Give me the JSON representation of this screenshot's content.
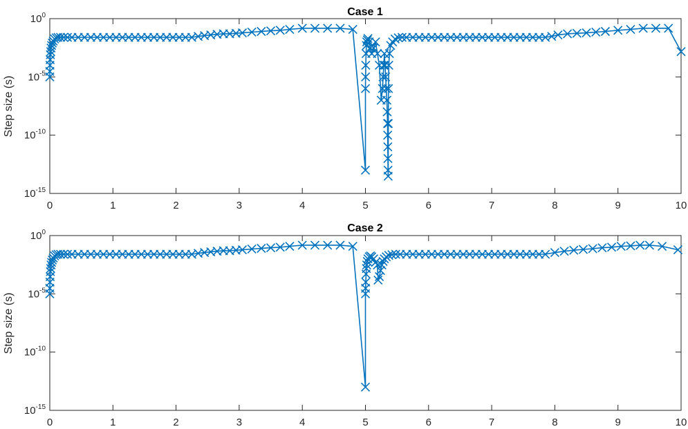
{
  "chart_data": [
    {
      "type": "line",
      "title": "Case 1",
      "xlabel": "",
      "ylabel": "Step size (s)",
      "xlim": [
        0,
        10
      ],
      "ylim": [
        1e-15,
        1
      ],
      "yscale": "log",
      "x_ticks": [
        "0",
        "1",
        "2",
        "3",
        "4",
        "5",
        "6",
        "7",
        "8",
        "9",
        "10"
      ],
      "y_ticks": [
        {
          "base": "10",
          "exp": "0"
        },
        {
          "base": "10",
          "exp": "-5"
        },
        {
          "base": "10",
          "exp": "-10"
        },
        {
          "base": "10",
          "exp": "-15"
        }
      ],
      "color": "#0072BD",
      "marker": "x",
      "grid": false,
      "series": [
        {
          "x": [
            0,
            0.001,
            0.003,
            0.006,
            0.01,
            0.015,
            0.02,
            0.028,
            0.04,
            0.055,
            0.075,
            0.1,
            0.13,
            0.17,
            0.22,
            0.28,
            0.35,
            0.45,
            0.55,
            0.65,
            0.75,
            0.85,
            0.95,
            1.05,
            1.15,
            1.25,
            1.35,
            1.45,
            1.55,
            1.65,
            1.75,
            1.85,
            1.95,
            2.05,
            2.15,
            2.25,
            2.35,
            2.45,
            2.55,
            2.65,
            2.75,
            2.85,
            2.95,
            3.05,
            3.2,
            3.35,
            3.5,
            3.65,
            3.8,
            4.0,
            4.2,
            4.4,
            4.6,
            4.8,
            5.0,
            5.0005,
            5.002,
            5.005,
            5.01,
            5.015,
            5.02,
            5.03,
            5.04,
            5.06,
            5.08,
            5.1,
            5.13,
            5.16,
            5.19,
            5.22,
            5.25,
            5.27,
            5.28,
            5.29,
            5.3,
            5.31,
            5.32,
            5.33,
            5.34,
            5.345,
            5.35,
            5.352,
            5.354,
            5.356,
            5.358,
            5.36,
            5.362,
            5.365,
            5.37,
            5.38,
            5.4,
            5.43,
            5.47,
            5.52,
            5.58,
            5.65,
            5.75,
            5.85,
            5.95,
            6.05,
            6.15,
            6.25,
            6.35,
            6.45,
            6.55,
            6.65,
            6.75,
            6.85,
            6.95,
            7.05,
            7.15,
            7.25,
            7.35,
            7.45,
            7.55,
            7.65,
            7.75,
            7.85,
            7.95,
            8.05,
            8.2,
            8.35,
            8.5,
            8.65,
            8.8,
            9.0,
            9.2,
            9.4,
            9.6,
            9.8,
            10.0
          ],
          "y": [
            1e-05,
            3e-05,
            0.0001,
            0.0003,
            0.0008,
            0.0015,
            0.003,
            0.005,
            0.008,
            0.012,
            0.018,
            0.023,
            0.025,
            0.025,
            0.025,
            0.025,
            0.025,
            0.025,
            0.025,
            0.025,
            0.025,
            0.025,
            0.025,
            0.025,
            0.025,
            0.025,
            0.025,
            0.025,
            0.025,
            0.025,
            0.025,
            0.025,
            0.025,
            0.025,
            0.025,
            0.025,
            0.03,
            0.035,
            0.04,
            0.045,
            0.05,
            0.05,
            0.055,
            0.06,
            0.07,
            0.08,
            0.09,
            0.1,
            0.12,
            0.15,
            0.15,
            0.15,
            0.15,
            0.12,
            1e-13,
            1e-06,
            1e-05,
            0.0001,
            0.001,
            0.005,
            0.01,
            0.015,
            0.02,
            0.01,
            0.003,
            0.001,
            0.003,
            0.01,
            0.001,
            0.0001,
            1e-07,
            1e-06,
            1e-05,
            0.0001,
            0.001,
            0.0001,
            1e-05,
            1e-06,
            1e-07,
            1e-08,
            1e-09,
            1e-10,
            1e-11,
            1e-12,
            1e-13,
            3e-14,
            1e-09,
            1e-06,
            0.0001,
            0.001,
            0.005,
            0.01,
            0.018,
            0.023,
            0.025,
            0.025,
            0.025,
            0.025,
            0.025,
            0.025,
            0.025,
            0.025,
            0.025,
            0.025,
            0.025,
            0.025,
            0.025,
            0.025,
            0.025,
            0.025,
            0.025,
            0.025,
            0.025,
            0.025,
            0.025,
            0.025,
            0.025,
            0.025,
            0.03,
            0.04,
            0.05,
            0.055,
            0.06,
            0.07,
            0.08,
            0.1,
            0.12,
            0.15,
            0.15,
            0.15,
            0.0015
          ]
        }
      ]
    },
    {
      "type": "line",
      "title": "Case 2",
      "xlabel": "",
      "ylabel": "Step size (s)",
      "xlim": [
        0,
        10
      ],
      "ylim": [
        1e-15,
        1
      ],
      "yscale": "log",
      "x_ticks": [
        "0",
        "1",
        "2",
        "3",
        "4",
        "5",
        "6",
        "7",
        "8",
        "9",
        "10"
      ],
      "y_ticks": [
        {
          "base": "10",
          "exp": "0"
        },
        {
          "base": "10",
          "exp": "-5"
        },
        {
          "base": "10",
          "exp": "-10"
        },
        {
          "base": "10",
          "exp": "-15"
        }
      ],
      "color": "#0072BD",
      "marker": "x",
      "grid": false,
      "series": [
        {
          "x": [
            0,
            0.001,
            0.003,
            0.006,
            0.01,
            0.015,
            0.02,
            0.028,
            0.04,
            0.055,
            0.075,
            0.1,
            0.13,
            0.17,
            0.22,
            0.28,
            0.35,
            0.45,
            0.55,
            0.65,
            0.75,
            0.85,
            0.95,
            1.05,
            1.15,
            1.25,
            1.35,
            1.45,
            1.55,
            1.65,
            1.75,
            1.85,
            1.95,
            2.05,
            2.15,
            2.25,
            2.35,
            2.45,
            2.55,
            2.65,
            2.75,
            2.85,
            2.95,
            3.05,
            3.2,
            3.35,
            3.5,
            3.65,
            3.8,
            4.0,
            4.2,
            4.4,
            4.6,
            4.8,
            5.0,
            5.0005,
            5.002,
            5.005,
            5.01,
            5.015,
            5.02,
            5.03,
            5.04,
            5.06,
            5.08,
            5.1,
            5.13,
            5.16,
            5.19,
            5.2,
            5.22,
            5.24,
            5.26,
            5.28,
            5.3,
            5.33,
            5.37,
            5.42,
            5.48,
            5.55,
            5.65,
            5.75,
            5.85,
            5.95,
            6.05,
            6.15,
            6.25,
            6.35,
            6.45,
            6.55,
            6.65,
            6.75,
            6.85,
            6.95,
            7.05,
            7.15,
            7.25,
            7.35,
            7.45,
            7.55,
            7.65,
            7.75,
            7.85,
            8.0,
            8.15,
            8.3,
            8.45,
            8.6,
            8.75,
            8.9,
            9.05,
            9.2,
            9.35,
            9.5,
            9.7,
            9.95
          ],
          "y": [
            1e-05,
            3e-05,
            0.0001,
            0.0003,
            0.0008,
            0.0015,
            0.003,
            0.005,
            0.008,
            0.012,
            0.018,
            0.023,
            0.025,
            0.025,
            0.025,
            0.025,
            0.025,
            0.025,
            0.025,
            0.025,
            0.025,
            0.025,
            0.025,
            0.025,
            0.025,
            0.025,
            0.025,
            0.025,
            0.025,
            0.025,
            0.025,
            0.025,
            0.025,
            0.025,
            0.025,
            0.025,
            0.03,
            0.035,
            0.04,
            0.045,
            0.05,
            0.05,
            0.055,
            0.06,
            0.07,
            0.08,
            0.09,
            0.1,
            0.12,
            0.15,
            0.15,
            0.15,
            0.15,
            0.12,
            1e-13,
            1e-05,
            3e-05,
            0.0001,
            0.0005,
            0.0015,
            0.003,
            0.006,
            0.01,
            0.015,
            0.018,
            0.015,
            0.01,
            0.005,
            0.003,
            0.00015,
            0.0003,
            0.001,
            0.003,
            0.006,
            0.01,
            0.015,
            0.02,
            0.023,
            0.025,
            0.025,
            0.025,
            0.025,
            0.025,
            0.025,
            0.025,
            0.025,
            0.025,
            0.025,
            0.025,
            0.025,
            0.025,
            0.025,
            0.025,
            0.025,
            0.025,
            0.025,
            0.025,
            0.025,
            0.025,
            0.025,
            0.025,
            0.025,
            0.025,
            0.035,
            0.045,
            0.055,
            0.065,
            0.075,
            0.09,
            0.1,
            0.12,
            0.13,
            0.15,
            0.15,
            0.12,
            0.06
          ]
        }
      ]
    }
  ]
}
